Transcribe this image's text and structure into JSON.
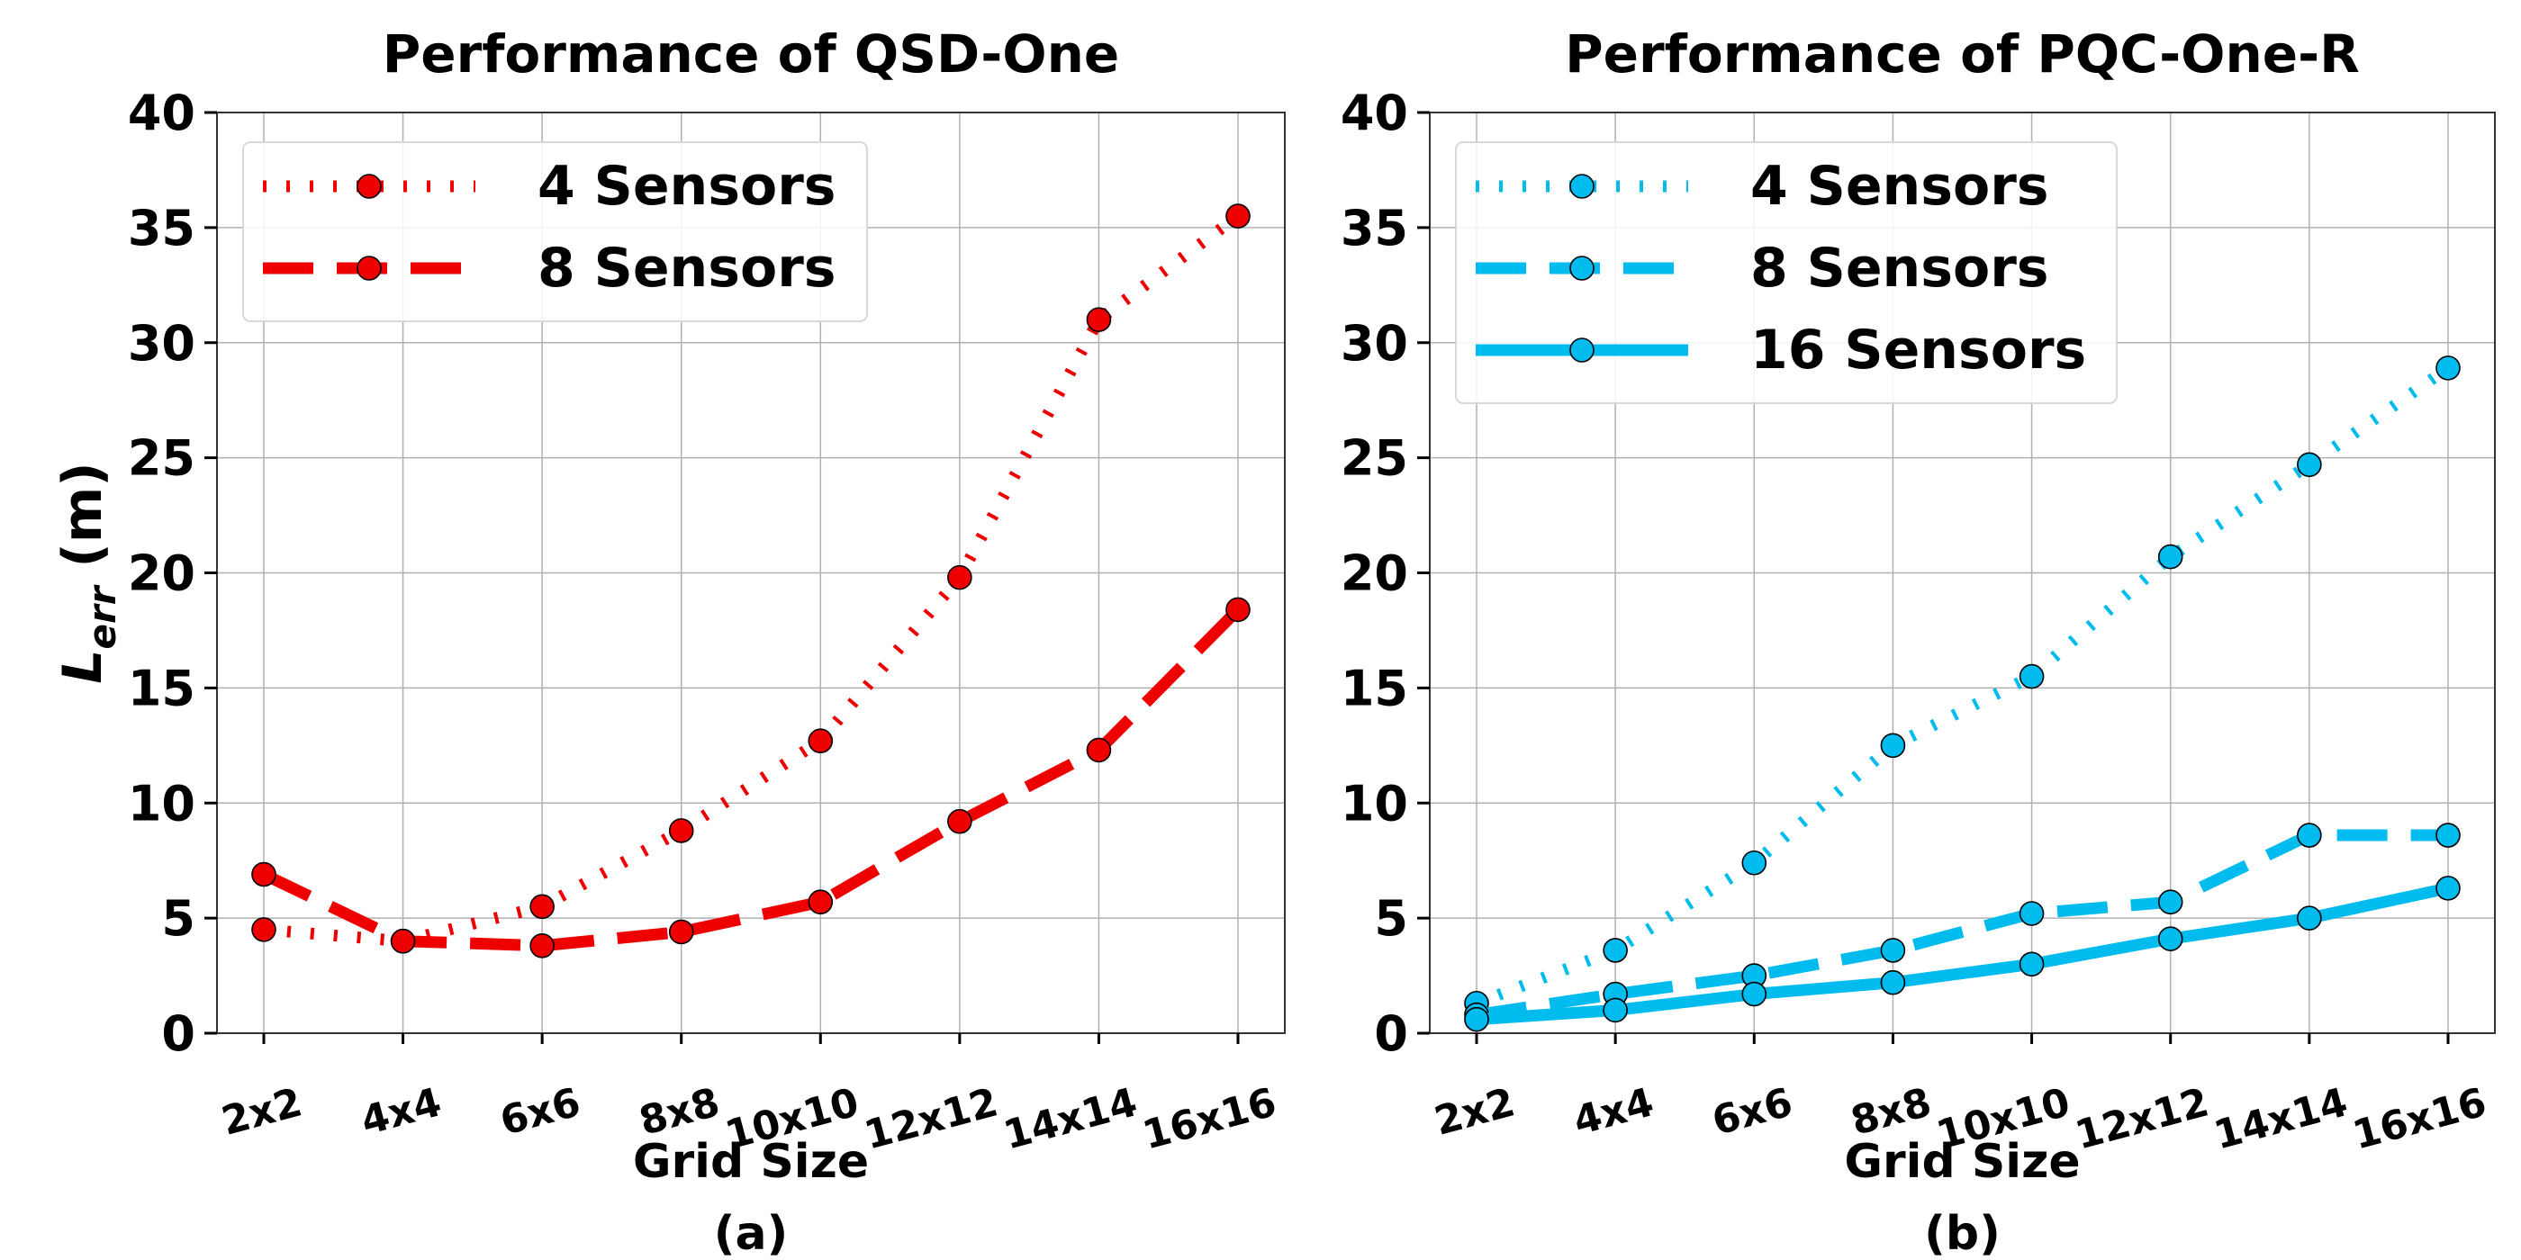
{
  "chart_data": [
    {
      "type": "line",
      "title": "Performance of QSD-One",
      "xlabel": "Grid Size",
      "ylabel_main": "L",
      "ylabel_sub": "err",
      "ylabel_unit": " (m)",
      "panel_label": "(a)",
      "categories": [
        "2x2",
        "4x4",
        "6x6",
        "8x8",
        "10x10",
        "12x12",
        "14x14",
        "16x16"
      ],
      "ylim": [
        0,
        40
      ],
      "yticks": [
        0,
        5,
        10,
        15,
        20,
        25,
        30,
        35,
        40
      ],
      "grid": true,
      "legend_position": "top-left",
      "series": [
        {
          "name": "4 Sensors",
          "style": "dotted",
          "color": "#ee0000",
          "values": [
            4.5,
            4.0,
            5.5,
            8.8,
            12.7,
            19.8,
            31.0,
            35.5
          ]
        },
        {
          "name": "8 Sensors",
          "style": "dashed",
          "color": "#ee0000",
          "values": [
            6.9,
            4.0,
            3.8,
            4.4,
            5.7,
            9.2,
            12.3,
            18.4
          ]
        }
      ]
    },
    {
      "type": "line",
      "title": "Performance of PQC-One-R",
      "xlabel": "Grid Size",
      "panel_label": "(b)",
      "categories": [
        "2x2",
        "4x4",
        "6x6",
        "8x8",
        "10x10",
        "12x12",
        "14x14",
        "16x16"
      ],
      "ylim": [
        0,
        40
      ],
      "yticks": [
        0,
        5,
        10,
        15,
        20,
        25,
        30,
        35,
        40
      ],
      "grid": true,
      "legend_position": "top-left",
      "series": [
        {
          "name": "4 Sensors",
          "style": "dotted",
          "color": "#00bbee",
          "values": [
            1.3,
            3.6,
            7.4,
            12.5,
            15.5,
            20.7,
            24.7,
            28.9
          ]
        },
        {
          "name": "8 Sensors",
          "style": "dashed",
          "color": "#00bbee",
          "values": [
            0.8,
            1.7,
            2.5,
            3.6,
            5.2,
            5.7,
            8.6,
            8.6
          ]
        },
        {
          "name": "16 Sensors",
          "style": "solid",
          "color": "#00bbee",
          "values": [
            0.6,
            1.0,
            1.7,
            2.2,
            3.0,
            4.1,
            5.0,
            6.3
          ]
        }
      ]
    }
  ]
}
